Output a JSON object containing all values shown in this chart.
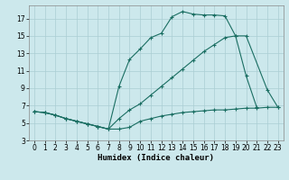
{
  "xlabel": "Humidex (Indice chaleur)",
  "bg_color": "#cce8ec",
  "grid_color": "#aacdd3",
  "line_color": "#1a6e62",
  "xlim": [
    -0.5,
    23.5
  ],
  "ylim": [
    3,
    18.5
  ],
  "xticks": [
    0,
    1,
    2,
    3,
    4,
    5,
    6,
    7,
    8,
    9,
    10,
    11,
    12,
    13,
    14,
    15,
    16,
    17,
    18,
    19,
    20,
    21,
    22,
    23
  ],
  "yticks": [
    3,
    5,
    7,
    9,
    11,
    13,
    15,
    17
  ],
  "curve_min_x": [
    0,
    1,
    2,
    3,
    4,
    5,
    6,
    7,
    8,
    9,
    10,
    11,
    12,
    13,
    14,
    15,
    16,
    17,
    18,
    19,
    20,
    21,
    22,
    23
  ],
  "curve_min_y": [
    6.3,
    6.2,
    5.9,
    5.5,
    5.2,
    4.9,
    4.6,
    4.3,
    4.3,
    4.5,
    5.2,
    5.5,
    5.8,
    6.0,
    6.2,
    6.3,
    6.4,
    6.5,
    6.5,
    6.6,
    6.7,
    6.7,
    6.8,
    6.8
  ],
  "curve_max_x": [
    0,
    1,
    2,
    3,
    4,
    5,
    6,
    7,
    8,
    9,
    10,
    11,
    12,
    13,
    14,
    15,
    16,
    17,
    18,
    19,
    20,
    21,
    22,
    23
  ],
  "curve_max_y": [
    6.3,
    6.2,
    5.9,
    5.5,
    5.2,
    4.9,
    4.6,
    4.3,
    9.2,
    12.3,
    13.5,
    14.8,
    15.3,
    17.2,
    17.8,
    17.5,
    17.4,
    17.4,
    17.3,
    15.0,
    10.4,
    6.8,
    null,
    null
  ],
  "curve_diag_x": [
    0,
    1,
    2,
    3,
    4,
    5,
    6,
    7,
    8,
    9,
    10,
    11,
    12,
    13,
    14,
    15,
    16,
    17,
    18,
    19,
    20,
    22,
    23
  ],
  "curve_diag_y": [
    6.3,
    6.2,
    5.9,
    5.5,
    5.2,
    4.9,
    4.6,
    4.3,
    5.5,
    6.5,
    7.2,
    8.2,
    9.2,
    10.2,
    11.2,
    12.2,
    13.2,
    14.0,
    14.8,
    15.0,
    15.0,
    8.8,
    6.8
  ]
}
